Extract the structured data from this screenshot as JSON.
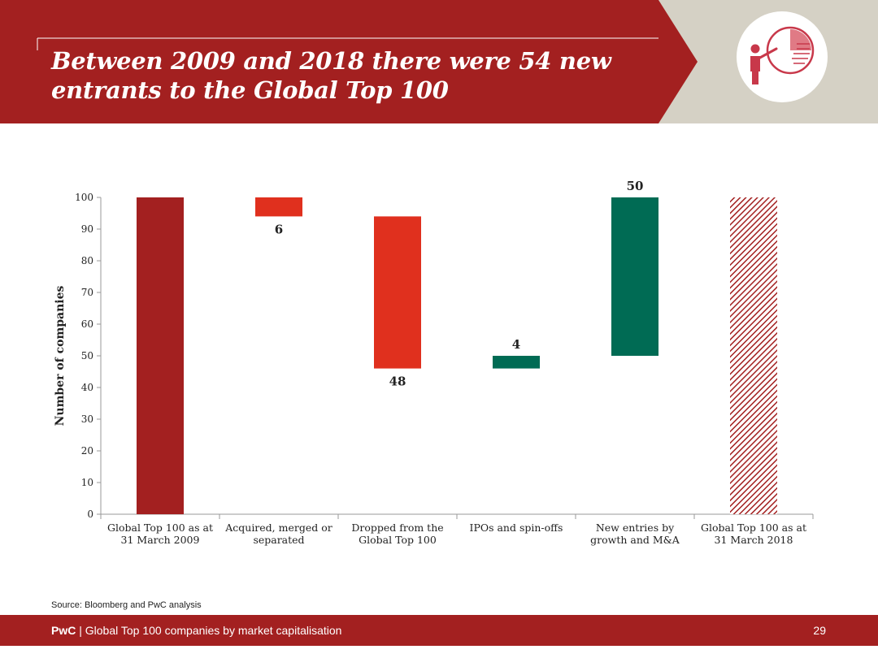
{
  "header": {
    "title_line1": "Between 2009 and 2018 there were 54 new",
    "title_line2": "entrants to the Global Top 100",
    "icon": "presentation-pie-chart-icon",
    "colors": {
      "primary": "#a32020",
      "secondary": "#d5d1c5"
    }
  },
  "chart_data": {
    "type": "bar",
    "subtype": "waterfall",
    "ylabel": "Number of companies",
    "ylim": [
      0,
      100
    ],
    "yticks": [
      0,
      10,
      20,
      30,
      40,
      50,
      60,
      70,
      80,
      90,
      100
    ],
    "categories": [
      [
        "Global Top 100 as at",
        "31 March 2009"
      ],
      [
        "Acquired, merged or",
        "separated"
      ],
      [
        "Dropped from the",
        "Global Top 100"
      ],
      [
        "IPOs and spin-offs"
      ],
      [
        "New entries by",
        "growth and M&A"
      ],
      [
        "Global Top 100 as at",
        "31 March 2018"
      ]
    ],
    "bars": [
      {
        "start": 0,
        "end": 100,
        "label": "",
        "color": "#a32020",
        "style": "solid"
      },
      {
        "start": 94,
        "end": 100,
        "label": "6",
        "color": "#e0301e",
        "style": "solid",
        "label_pos": "below"
      },
      {
        "start": 46,
        "end": 94,
        "label": "48",
        "color": "#e0301e",
        "style": "solid",
        "label_pos": "below"
      },
      {
        "start": 46,
        "end": 50,
        "label": "4",
        "color": "#006b54",
        "style": "solid",
        "label_pos": "above"
      },
      {
        "start": 50,
        "end": 100,
        "label": "50",
        "color": "#006b54",
        "style": "solid",
        "label_pos": "above"
      },
      {
        "start": 0,
        "end": 100,
        "label": "",
        "color": "#a32020",
        "style": "hatched"
      }
    ],
    "grid": false,
    "legend": "none"
  },
  "source": "Source: Bloomberg and PwC analysis",
  "footer": {
    "brand": "PwC",
    "separator": " | ",
    "text": "Global Top 100 companies by market capitalisation",
    "page_number": "29"
  }
}
